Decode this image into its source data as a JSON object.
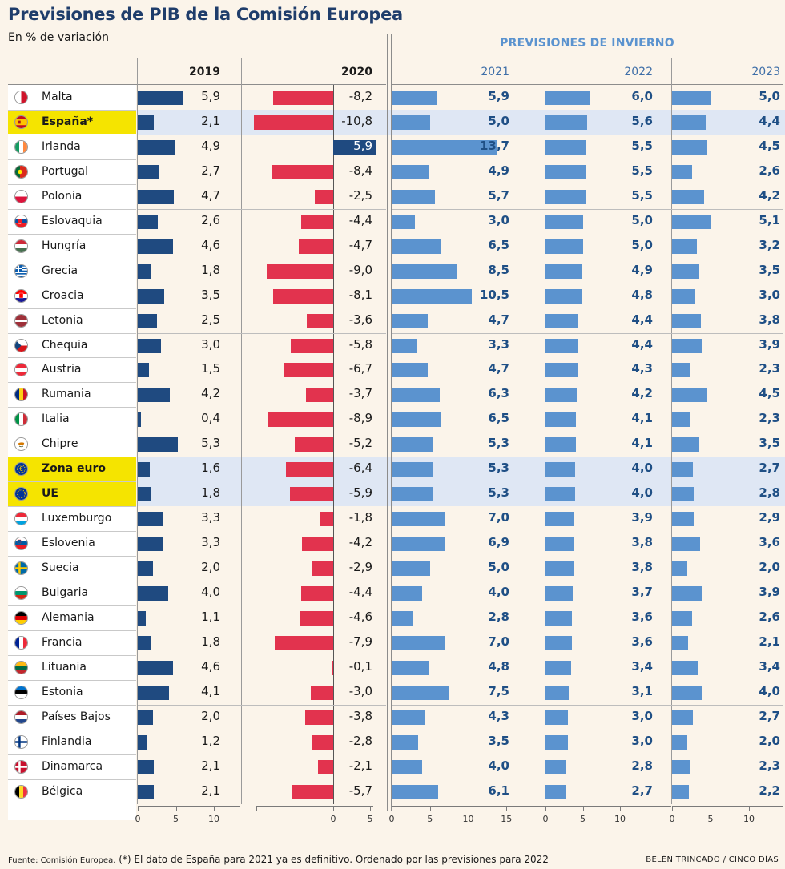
{
  "title": "Previsiones de PIB de la Comisión Europea",
  "subtitle": "En % de variación",
  "winter_header": "PREVISIONES DE INVIERNO",
  "footer": {
    "source": "Fuente: Comisión Europea.",
    "note": "(*) El dato de España para 2021 ya es definitivo. Ordenado por las previsiones para 2022",
    "credit": "BELÉN TRINCADO / CINCO DÍAS"
  },
  "colors": {
    "dark_bar": "#1f4a80",
    "neg_bar": "#e2334e",
    "light_bar": "#5b93cf",
    "highlight": "#f5e400",
    "band": "#dfe7f4"
  },
  "chart_data": {
    "type": "bar",
    "years": [
      "2019",
      "2020",
      "2021",
      "2022",
      "2023"
    ],
    "axes": {
      "2019": {
        "range": [
          0,
          13.5
        ],
        "ticks": [
          "0",
          "5",
          "10"
        ]
      },
      "2020": {
        "range": [
          -11,
          5.5
        ],
        "ticks": [
          "0",
          "5"
        ]
      },
      "2021": {
        "range": [
          0,
          17.5
        ],
        "ticks": [
          "0",
          "5",
          "10",
          "15"
        ]
      },
      "2022": {
        "range": [
          0,
          14
        ],
        "ticks": [
          "0",
          "5",
          "10"
        ]
      },
      "2023": {
        "range": [
          0,
          14
        ],
        "ticks": [
          "0",
          "5",
          "10"
        ]
      }
    },
    "rows": [
      {
        "country": "Malta",
        "flag": "malta-flag-icon",
        "v2019": "5,9",
        "v2020": "-8,2",
        "v2021": "5,9",
        "v2022": "6,0",
        "v2023": "5,0"
      },
      {
        "country": "España*",
        "flag": "spain-flag-icon",
        "v2019": "2,1",
        "v2020": "-10,8",
        "v2021": "5,0",
        "v2022": "5,6",
        "v2023": "4,4",
        "highlight": true
      },
      {
        "country": "Irlanda",
        "flag": "ireland-flag-icon",
        "v2019": "4,9",
        "v2020": "5,9",
        "v2021": "13,7",
        "v2022": "5,5",
        "v2023": "4,5"
      },
      {
        "country": "Portugal",
        "flag": "portugal-flag-icon",
        "v2019": "2,7",
        "v2020": "-8,4",
        "v2021": "4,9",
        "v2022": "5,5",
        "v2023": "2,6"
      },
      {
        "country": "Polonia",
        "flag": "poland-flag-icon",
        "v2019": "4,7",
        "v2020": "-2,5",
        "v2021": "5,7",
        "v2022": "5,5",
        "v2023": "4,2"
      },
      {
        "country": "Eslovaquia",
        "flag": "slovakia-flag-icon",
        "v2019": "2,6",
        "v2020": "-4,4",
        "v2021": "3,0",
        "v2022": "5,0",
        "v2023": "5,1"
      },
      {
        "country": "Hungría",
        "flag": "hungary-flag-icon",
        "v2019": "4,6",
        "v2020": "-4,7",
        "v2021": "6,5",
        "v2022": "5,0",
        "v2023": "3,2"
      },
      {
        "country": "Grecia",
        "flag": "greece-flag-icon",
        "v2019": "1,8",
        "v2020": "-9,0",
        "v2021": "8,5",
        "v2022": "4,9",
        "v2023": "3,5"
      },
      {
        "country": "Croacia",
        "flag": "croatia-flag-icon",
        "v2019": "3,5",
        "v2020": "-8,1",
        "v2021": "10,5",
        "v2022": "4,8",
        "v2023": "3,0"
      },
      {
        "country": "Letonia",
        "flag": "latvia-flag-icon",
        "v2019": "2,5",
        "v2020": "-3,6",
        "v2021": "4,7",
        "v2022": "4,4",
        "v2023": "3,8"
      },
      {
        "country": "Chequia",
        "flag": "czechia-flag-icon",
        "v2019": "3,0",
        "v2020": "-5,8",
        "v2021": "3,3",
        "v2022": "4,4",
        "v2023": "3,9"
      },
      {
        "country": "Austria",
        "flag": "austria-flag-icon",
        "v2019": "1,5",
        "v2020": "-6,7",
        "v2021": "4,7",
        "v2022": "4,3",
        "v2023": "2,3"
      },
      {
        "country": "Rumania",
        "flag": "romania-flag-icon",
        "v2019": "4,2",
        "v2020": "-3,7",
        "v2021": "6,3",
        "v2022": "4,2",
        "v2023": "4,5"
      },
      {
        "country": "Italia",
        "flag": "italy-flag-icon",
        "v2019": "0,4",
        "v2020": "-8,9",
        "v2021": "6,5",
        "v2022": "4,1",
        "v2023": "2,3"
      },
      {
        "country": "Chipre",
        "flag": "cyprus-flag-icon",
        "v2019": "5,3",
        "v2020": "-5,2",
        "v2021": "5,3",
        "v2022": "4,1",
        "v2023": "3,5"
      },
      {
        "country": "Zona euro",
        "flag": "eurozone-flag-icon",
        "v2019": "1,6",
        "v2020": "-6,4",
        "v2021": "5,3",
        "v2022": "4,0",
        "v2023": "2,7",
        "highlight": true,
        "band": true
      },
      {
        "country": "UE",
        "flag": "eu-flag-icon",
        "v2019": "1,8",
        "v2020": "-5,9",
        "v2021": "5,3",
        "v2022": "4,0",
        "v2023": "2,8",
        "highlight": true,
        "band": true
      },
      {
        "country": "Luxemburgo",
        "flag": "luxembourg-flag-icon",
        "v2019": "3,3",
        "v2020": "-1,8",
        "v2021": "7,0",
        "v2022": "3,9",
        "v2023": "2,9"
      },
      {
        "country": "Eslovenia",
        "flag": "slovenia-flag-icon",
        "v2019": "3,3",
        "v2020": "-4,2",
        "v2021": "6,9",
        "v2022": "3,8",
        "v2023": "3,6"
      },
      {
        "country": "Suecia",
        "flag": "sweden-flag-icon",
        "v2019": "2,0",
        "v2020": "-2,9",
        "v2021": "5,0",
        "v2022": "3,8",
        "v2023": "2,0"
      },
      {
        "country": "Bulgaria",
        "flag": "bulgaria-flag-icon",
        "v2019": "4,0",
        "v2020": "-4,4",
        "v2021": "4,0",
        "v2022": "3,7",
        "v2023": "3,9"
      },
      {
        "country": "Alemania",
        "flag": "germany-flag-icon",
        "v2019": "1,1",
        "v2020": "-4,6",
        "v2021": "2,8",
        "v2022": "3,6",
        "v2023": "2,6"
      },
      {
        "country": "Francia",
        "flag": "france-flag-icon",
        "v2019": "1,8",
        "v2020": "-7,9",
        "v2021": "7,0",
        "v2022": "3,6",
        "v2023": "2,1"
      },
      {
        "country": "Lituania",
        "flag": "lithuania-flag-icon",
        "v2019": "4,6",
        "v2020": "-0,1",
        "v2021": "4,8",
        "v2022": "3,4",
        "v2023": "3,4"
      },
      {
        "country": "Estonia",
        "flag": "estonia-flag-icon",
        "v2019": "4,1",
        "v2020": "-3,0",
        "v2021": "7,5",
        "v2022": "3,1",
        "v2023": "4,0"
      },
      {
        "country": "Países Bajos",
        "flag": "netherlands-flag-icon",
        "v2019": "2,0",
        "v2020": "-3,8",
        "v2021": "4,3",
        "v2022": "3,0",
        "v2023": "2,7"
      },
      {
        "country": "Finlandia",
        "flag": "finland-flag-icon",
        "v2019": "1,2",
        "v2020": "-2,8",
        "v2021": "3,5",
        "v2022": "3,0",
        "v2023": "2,0"
      },
      {
        "country": "Dinamarca",
        "flag": "denmark-flag-icon",
        "v2019": "2,1",
        "v2020": "-2,1",
        "v2021": "4,0",
        "v2022": "2,8",
        "v2023": "2,3"
      },
      {
        "country": "Bélgica",
        "flag": "belgium-flag-icon",
        "v2019": "2,1",
        "v2020": "-5,7",
        "v2021": "6,1",
        "v2022": "2,7",
        "v2023": "2,2"
      }
    ]
  }
}
